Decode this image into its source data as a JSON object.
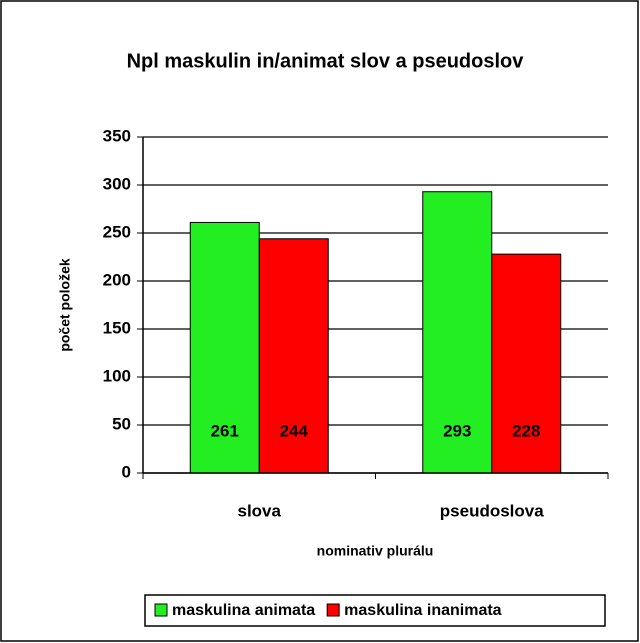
{
  "chart_data": {
    "type": "bar",
    "title": "Npl maskulin in/animat slov a pseudoslov",
    "x_label": "nominativ plurálu",
    "y_label": "počet položek",
    "categories": [
      "slova",
      "pseudoslova"
    ],
    "series": [
      {
        "name": "maskulina animata",
        "color": "#22ee22",
        "values": [
          261,
          293
        ]
      },
      {
        "name": "maskulina inanimata",
        "color": "#ff0000",
        "values": [
          244,
          228
        ]
      }
    ],
    "ylim": [
      0,
      350
    ],
    "yticks": [
      0,
      50,
      100,
      150,
      200,
      250,
      300,
      350
    ],
    "grid": true,
    "legend": "bottom"
  }
}
